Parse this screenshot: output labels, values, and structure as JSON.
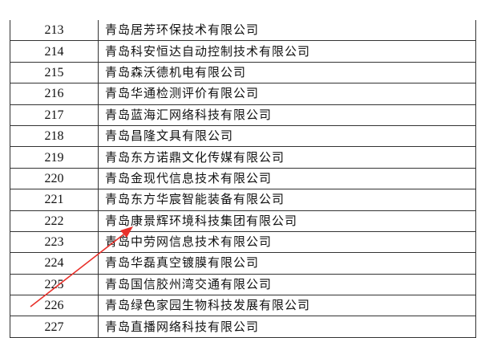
{
  "rows": [
    {
      "num": "213",
      "name": "青岛居芳环保技术有限公司"
    },
    {
      "num": "214",
      "name": "青岛科安恒达自动控制技术有限公司"
    },
    {
      "num": "215",
      "name": "青岛森沃德机电有限公司"
    },
    {
      "num": "216",
      "name": "青岛华通检测评价有限公司"
    },
    {
      "num": "217",
      "name": "青岛蓝海汇网络科技有限公司"
    },
    {
      "num": "218",
      "name": "青岛昌隆文具有限公司"
    },
    {
      "num": "219",
      "name": "青岛东方诺鼎文化传媒有限公司"
    },
    {
      "num": "220",
      "name": "青岛金现代信息技术有限公司"
    },
    {
      "num": "221",
      "name": "青岛东方华宸智能装备有限公司"
    },
    {
      "num": "222",
      "name": "青岛康景辉环境科技集团有限公司"
    },
    {
      "num": "223",
      "name": "青岛中劳网信息技术有限公司"
    },
    {
      "num": "224",
      "name": "青岛华磊真空镀膜有限公司"
    },
    {
      "num": "225",
      "name": "青岛国信胶州湾交通有限公司"
    },
    {
      "num": "226",
      "name": "青岛绿色家园生物科技发展有限公司"
    },
    {
      "num": "227",
      "name": "青岛直播网络科技有限公司"
    }
  ],
  "annotation": {
    "arrow_color": "#e8302a",
    "points_to_row": "222"
  }
}
